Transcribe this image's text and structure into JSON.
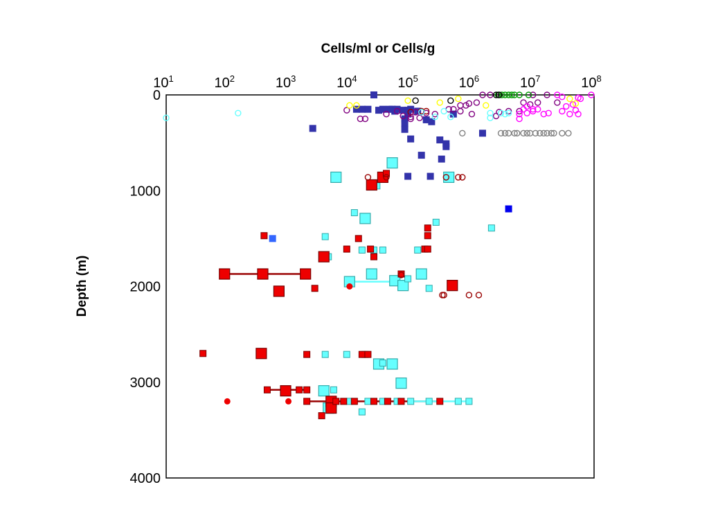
{
  "chart_data": {
    "type": "scatter",
    "title": "Cells/ml or Cells/g",
    "xlabel": "Cells/ml or Cells/g",
    "ylabel": "Depth (m)",
    "x_scale": "log",
    "x_axis_position": "top",
    "y_inverted": true,
    "xlim": [
      10,
      100000000
    ],
    "ylim": [
      0,
      4000
    ],
    "x_ticks": [
      {
        "base": "10",
        "exp": "1",
        "value": 10
      },
      {
        "base": "10",
        "exp": "2",
        "value": 100
      },
      {
        "base": "10",
        "exp": "3",
        "value": 1000
      },
      {
        "base": "10",
        "exp": "4",
        "value": 10000
      },
      {
        "base": "10",
        "exp": "5",
        "value": 100000
      },
      {
        "base": "10",
        "exp": "6",
        "value": 1000000
      },
      {
        "base": "10",
        "exp": "7",
        "value": 10000000
      },
      {
        "base": "10",
        "exp": "8",
        "value": 100000000
      }
    ],
    "y_ticks": [
      "0",
      "1000",
      "2000",
      "3000",
      "4000"
    ],
    "y_tick_values": [
      0,
      1000,
      2000,
      3000,
      4000
    ],
    "grid": false,
    "legend": "none",
    "colors": {
      "navy": "#3333aa",
      "blue": "#0000ee",
      "royal": "#3366ff",
      "cyan": "#66ffff",
      "red": "#ee0000",
      "darkred": "#990000",
      "purple": "#800080",
      "magenta": "#ff00ff",
      "green": "#009900",
      "yellow": "#ffff00",
      "gray": "#808080",
      "black": "#000000"
    },
    "series": [
      {
        "marker": "square-small",
        "color": "navy",
        "points": [
          [
            25000,
            0
          ],
          [
            20000,
            150
          ],
          [
            13000,
            150
          ],
          [
            16000,
            150
          ],
          [
            30000,
            160
          ],
          [
            35000,
            150
          ],
          [
            50000,
            150
          ],
          [
            60000,
            150
          ],
          [
            75000,
            160
          ],
          [
            90000,
            160
          ],
          [
            100000,
            150
          ],
          [
            130000,
            170
          ],
          [
            55000,
            170
          ],
          [
            45000,
            150
          ],
          [
            80000,
            250
          ],
          [
            80000,
            300
          ],
          [
            80000,
            360
          ],
          [
            90000,
            200
          ],
          [
            180000,
            260
          ],
          [
            220000,
            280
          ],
          [
            100000,
            460
          ],
          [
            150000,
            630
          ],
          [
            300000,
            470
          ],
          [
            380000,
            510
          ],
          [
            380000,
            540
          ],
          [
            320000,
            670
          ],
          [
            90000,
            850
          ],
          [
            210000,
            850
          ],
          [
            1500000,
            400
          ],
          [
            500000,
            200
          ],
          [
            2500,
            350
          ]
        ]
      },
      {
        "marker": "square-small",
        "color": "blue",
        "points": [
          [
            4000000,
            1190
          ]
        ]
      },
      {
        "marker": "square-small",
        "color": "royal",
        "points": [
          [
            550,
            1500
          ]
        ]
      },
      {
        "marker": "square-large",
        "color": "cyan",
        "points": [
          [
            50000,
            710
          ],
          [
            6000,
            860
          ],
          [
            420000,
            860
          ],
          [
            18000,
            1290
          ],
          [
            23000,
            1870
          ],
          [
            10000,
            1950
          ],
          [
            55000,
            1940
          ],
          [
            75000,
            1990
          ],
          [
            150000,
            1870
          ],
          [
            30000,
            2810
          ],
          [
            50000,
            2810
          ],
          [
            70000,
            3010
          ],
          [
            3800,
            3090
          ],
          [
            4500,
            3270
          ]
        ]
      },
      {
        "marker": "square-small",
        "color": "cyan",
        "points": [
          [
            28000,
            950
          ],
          [
            12000,
            1230
          ],
          [
            260000,
            1330
          ],
          [
            2100000,
            1390
          ],
          [
            4000,
            1480
          ],
          [
            4500,
            1690
          ],
          [
            16000,
            1620
          ],
          [
            25000,
            1620
          ],
          [
            35000,
            1620
          ],
          [
            130000,
            1620
          ],
          [
            90000,
            1920
          ],
          [
            200000,
            2020
          ],
          [
            4000,
            2710
          ],
          [
            9000,
            2710
          ],
          [
            18000,
            2710
          ],
          [
            35000,
            2800
          ],
          [
            5500,
            3080
          ],
          [
            10000,
            3200
          ],
          [
            20000,
            3200
          ],
          [
            35000,
            3200
          ],
          [
            60000,
            3200
          ],
          [
            100000,
            3200
          ],
          [
            200000,
            3200
          ],
          [
            600000,
            3200
          ],
          [
            900000,
            3200
          ],
          [
            16000,
            3310
          ]
        ]
      },
      {
        "marker": "square-large",
        "color": "red",
        "points": [
          [
            35000,
            860
          ],
          [
            23000,
            940
          ],
          [
            3800,
            1690
          ],
          [
            90,
            1870
          ],
          [
            380,
            1870
          ],
          [
            1900,
            1870
          ],
          [
            700,
            2050
          ],
          [
            480000,
            1990
          ],
          [
            360,
            2700
          ],
          [
            900,
            3090
          ],
          [
            5000,
            3200
          ],
          [
            5000,
            3270
          ]
        ]
      },
      {
        "marker": "square-small",
        "color": "red",
        "points": [
          [
            40000,
            820
          ],
          [
            400,
            1470
          ],
          [
            190000,
            1390
          ],
          [
            190000,
            1470
          ],
          [
            14000,
            1500
          ],
          [
            9000,
            1610
          ],
          [
            22000,
            1610
          ],
          [
            170000,
            1610
          ],
          [
            190000,
            1610
          ],
          [
            25000,
            1690
          ],
          [
            70000,
            1870
          ],
          [
            2700,
            2020
          ],
          [
            40,
            2700
          ],
          [
            2000,
            2710
          ],
          [
            16000,
            2710
          ],
          [
            20000,
            2710
          ],
          [
            450,
            3080
          ],
          [
            1500,
            3080
          ],
          [
            2000,
            3080
          ],
          [
            2000,
            3200
          ],
          [
            6000,
            3200
          ],
          [
            8000,
            3200
          ],
          [
            12000,
            3200
          ],
          [
            25000,
            3200
          ],
          [
            42000,
            3200
          ],
          [
            70000,
            3200
          ],
          [
            300000,
            3200
          ],
          [
            3500,
            3350
          ]
        ]
      },
      {
        "marker": "circle-filled",
        "color": "red",
        "points": [
          [
            100,
            3200
          ],
          [
            1000,
            3200
          ],
          [
            10000,
            2000
          ]
        ]
      },
      {
        "marker": "circle-open",
        "color": "darkred",
        "points": [
          [
            40000,
            860
          ],
          [
            20000,
            860
          ],
          [
            380000,
            860
          ],
          [
            600000,
            860
          ],
          [
            700000,
            860
          ],
          [
            330000,
            2090
          ],
          [
            350000,
            2090
          ],
          [
            900000,
            2090
          ],
          [
            1300000,
            2090
          ],
          [
            70000,
            1880
          ],
          [
            100000,
            180
          ],
          [
            150000,
            170
          ],
          [
            180000,
            170
          ]
        ]
      },
      {
        "marker": "circle-open",
        "color": "purple",
        "points": [
          [
            9000,
            160
          ],
          [
            15000,
            250
          ],
          [
            18000,
            250
          ],
          [
            40000,
            200
          ],
          [
            60000,
            170
          ],
          [
            75000,
            220
          ],
          [
            100000,
            230
          ],
          [
            100000,
            250
          ],
          [
            120000,
            180
          ],
          [
            140000,
            240
          ],
          [
            180000,
            190
          ],
          [
            250000,
            200
          ],
          [
            420000,
            150
          ],
          [
            500000,
            150
          ],
          [
            650000,
            170
          ],
          [
            650000,
            110
          ],
          [
            800000,
            110
          ],
          [
            900000,
            90
          ],
          [
            1000000,
            200
          ],
          [
            1200000,
            80
          ],
          [
            1500000,
            0
          ],
          [
            2000000,
            0
          ],
          [
            2500000,
            220
          ],
          [
            2800000,
            180
          ],
          [
            4000000,
            170
          ],
          [
            6000000,
            170
          ],
          [
            7000000,
            80
          ],
          [
            9000000,
            100
          ],
          [
            12000000,
            80
          ],
          [
            10000000,
            0
          ],
          [
            17000000,
            0
          ],
          [
            25000000,
            80
          ]
        ]
      },
      {
        "marker": "circle-open",
        "color": "magenta",
        "points": [
          [
            6000000,
            200
          ],
          [
            6000000,
            250
          ],
          [
            7000000,
            150
          ],
          [
            8000000,
            190
          ],
          [
            8000000,
            120
          ],
          [
            10000000,
            170
          ],
          [
            10000000,
            150
          ],
          [
            12000000,
            150
          ],
          [
            15000000,
            200
          ],
          [
            18000000,
            190
          ],
          [
            25000000,
            0
          ],
          [
            30000000,
            20
          ],
          [
            30000000,
            170
          ],
          [
            35000000,
            120
          ],
          [
            40000000,
            200
          ],
          [
            45000000,
            100
          ],
          [
            50000000,
            160
          ],
          [
            55000000,
            200
          ],
          [
            55000000,
            30
          ],
          [
            60000000,
            40
          ],
          [
            90000000,
            0
          ]
        ]
      },
      {
        "marker": "circle-open",
        "color": "green",
        "points": [
          [
            2700000,
            0
          ],
          [
            3100000,
            0
          ],
          [
            3500000,
            0
          ],
          [
            4000000,
            0
          ],
          [
            4500000,
            0
          ],
          [
            5000000,
            0
          ],
          [
            6000000,
            0
          ],
          [
            8500000,
            0
          ]
        ]
      },
      {
        "marker": "circle-open",
        "color": "black",
        "points": [
          [
            120000,
            60
          ],
          [
            450000,
            60
          ],
          [
            2500000,
            0
          ],
          [
            2800000,
            0
          ]
        ]
      },
      {
        "marker": "circle-open",
        "color": "yellow",
        "points": [
          [
            10000,
            110
          ],
          [
            13000,
            110
          ],
          [
            90000,
            60
          ],
          [
            300000,
            80
          ],
          [
            600000,
            40
          ],
          [
            1700000,
            110
          ],
          [
            40000000,
            40
          ],
          [
            50000000,
            90
          ]
        ]
      },
      {
        "marker": "circle-open",
        "color": "cyan",
        "points": [
          [
            10,
            240
          ],
          [
            150,
            190
          ],
          [
            150000,
            180
          ],
          [
            250000,
            230
          ],
          [
            350000,
            170
          ],
          [
            450000,
            230
          ],
          [
            2000000,
            190
          ],
          [
            2000000,
            240
          ],
          [
            3000000,
            190
          ],
          [
            3500000,
            200
          ],
          [
            4000000,
            190
          ]
        ]
      },
      {
        "marker": "circle-open",
        "color": "gray",
        "points": [
          [
            700000,
            400
          ],
          [
            3000000,
            400
          ],
          [
            3500000,
            400
          ],
          [
            4000000,
            400
          ],
          [
            5000000,
            400
          ],
          [
            5500000,
            400
          ],
          [
            7000000,
            400
          ],
          [
            8000000,
            400
          ],
          [
            9000000,
            400
          ],
          [
            11000000,
            400
          ],
          [
            13000000,
            400
          ],
          [
            15000000,
            400
          ],
          [
            17000000,
            400
          ],
          [
            20000000,
            400
          ],
          [
            22000000,
            400
          ],
          [
            30000000,
            400
          ],
          [
            38000000,
            400
          ]
        ]
      }
    ],
    "ranges": [
      {
        "color": "darkred",
        "from": 90,
        "to": 1900,
        "depth": 1870
      },
      {
        "color": "cyan",
        "from": 10000,
        "to": 60000,
        "depth": 1950
      },
      {
        "color": "darkred",
        "from": 450,
        "to": 2000,
        "depth": 3080
      },
      {
        "color": "darkred",
        "from": 2000,
        "to": 300000,
        "depth": 3200
      },
      {
        "color": "cyan",
        "from": 100000,
        "to": 900000,
        "depth": 3200
      }
    ]
  }
}
